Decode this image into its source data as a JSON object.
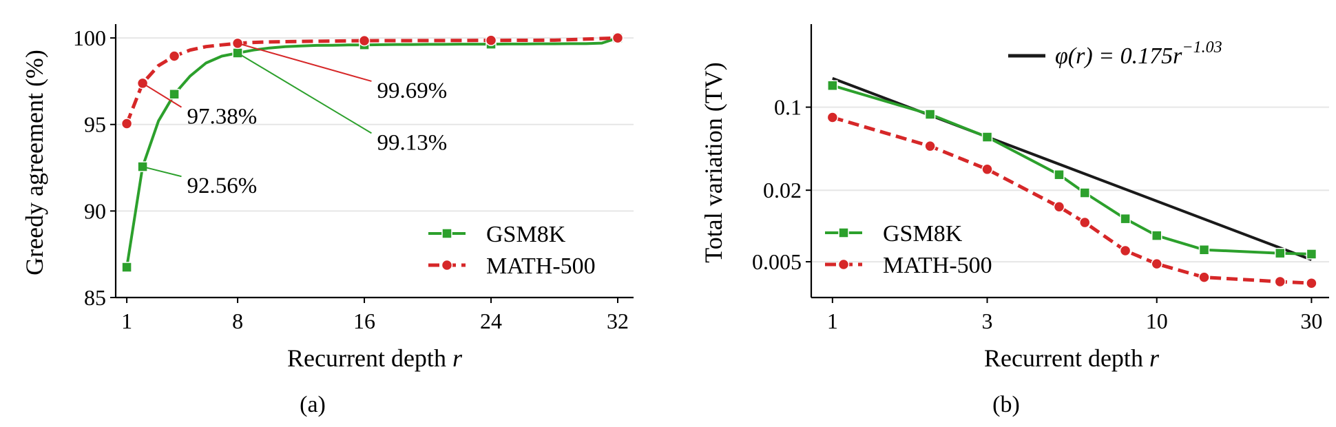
{
  "colors": {
    "green": "#2ca02c",
    "red": "#d62728",
    "black": "#1a1a1a",
    "grid": "#e6e6e6"
  },
  "chart_data": [
    {
      "type": "line",
      "panel_label": "(a)",
      "xlabel": "Recurrent depth r",
      "ylabel": "Greedy agreement (%)",
      "xlim": [
        0.3,
        33
      ],
      "ylim": [
        85,
        100.8
      ],
      "xticks": [
        1,
        8,
        16,
        24,
        32
      ],
      "xtick_labels": [
        "1",
        "8",
        "16",
        "24",
        "32"
      ],
      "yticks": [
        85,
        90,
        95,
        100
      ],
      "ytick_labels": [
        "85",
        "90",
        "95",
        "100"
      ],
      "grid": "horizontal",
      "legend_position": "lower-right",
      "series": [
        {
          "name": "GSM8K",
          "color": "#2ca02c",
          "style": "solid",
          "x": [
            1,
            2,
            3,
            4,
            5,
            6,
            7,
            8,
            9,
            10,
            11,
            12,
            13,
            14,
            15,
            16,
            17,
            18,
            19,
            20,
            21,
            22,
            23,
            24,
            25,
            26,
            27,
            28,
            29,
            30,
            31,
            32
          ],
          "y": [
            86.75,
            92.56,
            95.2,
            96.75,
            97.8,
            98.55,
            98.95,
            99.13,
            99.3,
            99.42,
            99.5,
            99.54,
            99.57,
            99.58,
            99.6,
            99.6,
            99.61,
            99.62,
            99.62,
            99.63,
            99.63,
            99.64,
            99.64,
            99.64,
            99.65,
            99.65,
            99.66,
            99.66,
            99.67,
            99.67,
            99.7,
            100.0
          ],
          "marker_x": [
            1,
            2,
            4,
            8,
            16,
            24,
            32
          ]
        },
        {
          "name": "MATH-500",
          "color": "#d62728",
          "style": "dashed",
          "x": [
            1,
            2,
            3,
            4,
            5,
            6,
            7,
            8,
            9,
            10,
            12,
            14,
            16,
            20,
            24,
            28,
            32
          ],
          "y": [
            95.05,
            97.38,
            98.4,
            98.95,
            99.3,
            99.5,
            99.6,
            99.69,
            99.74,
            99.77,
            99.8,
            99.82,
            99.84,
            99.85,
            99.86,
            99.87,
            100.0
          ],
          "marker_x": [
            1,
            2,
            4,
            8,
            16,
            24,
            32
          ]
        }
      ],
      "annotations": [
        {
          "text": "92.56%",
          "x": 2,
          "y": 92.56,
          "series": "GSM8K",
          "label_pos": [
            4.8,
            91.6
          ]
        },
        {
          "text": "97.38%",
          "x": 2,
          "y": 97.38,
          "series": "MATH-500",
          "label_pos": [
            4.8,
            95.6
          ]
        },
        {
          "text": "99.13%",
          "x": 8,
          "y": 99.13,
          "series": "GSM8K",
          "label_pos": [
            16.8,
            94.1
          ]
        },
        {
          "text": "99.69%",
          "x": 8,
          "y": 99.69,
          "series": "MATH-500",
          "label_pos": [
            16.8,
            97.1
          ]
        }
      ]
    },
    {
      "type": "line",
      "panel_label": "(b)",
      "xlabel": "Recurrent depth r",
      "ylabel": "Total variation (TV)",
      "xscale": "log",
      "yscale": "log",
      "xlim": [
        0.86,
        34
      ],
      "ylim": [
        0.0025,
        0.5
      ],
      "xticks": [
        1,
        3,
        10,
        30
      ],
      "xtick_labels": [
        "1",
        "3",
        "10",
        "30"
      ],
      "yticks": [
        0.005,
        0.02,
        0.1
      ],
      "ytick_labels": [
        "0.005",
        "0.02",
        "0.1"
      ],
      "grid": "horizontal",
      "legend_position": "lower-left",
      "series": [
        {
          "name": "φ(r) = 0.175r^−1.03",
          "color": "#1a1a1a",
          "style": "solid",
          "x": [
            1,
            30
          ],
          "y": [
            0.175,
            0.0052
          ]
        },
        {
          "name": "GSM8K",
          "color": "#2ca02c",
          "style": "solid",
          "x": [
            1,
            2,
            3,
            5,
            6,
            8,
            10,
            14,
            24,
            30
          ],
          "y": [
            0.152,
            0.087,
            0.056,
            0.027,
            0.019,
            0.0115,
            0.0083,
            0.0063,
            0.0059,
            0.0058
          ]
        },
        {
          "name": "MATH-500",
          "color": "#d62728",
          "style": "dashed",
          "x": [
            1,
            2,
            3,
            5,
            6,
            8,
            10,
            14,
            24,
            30
          ],
          "y": [
            0.082,
            0.047,
            0.03,
            0.0145,
            0.0107,
            0.0062,
            0.0048,
            0.0037,
            0.0034,
            0.0033
          ]
        }
      ],
      "legend_text": {
        "fit": "φ(r) = 0.175r",
        "fit_exponent": "−1.03"
      }
    }
  ]
}
